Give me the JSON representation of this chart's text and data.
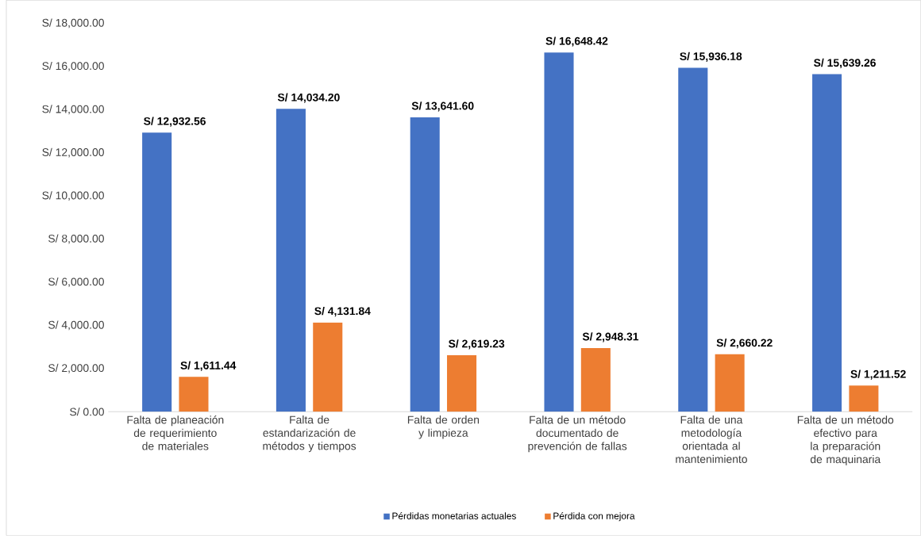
{
  "chart_data": {
    "type": "bar",
    "categories": [
      "Falta de planeación de requerimiento de materiales",
      "Falta de estandarización de métodos y tiempos",
      "Falta de orden y limpieza",
      "Falta de un método documentado de prevención de fallas",
      "Falta de una metodología orientada al mantenimiento",
      "Falta de un método efectivo para la preparación de maquinaria"
    ],
    "series": [
      {
        "name": "Pérdidas monetarias actuales",
        "color": "#4472c4",
        "values": [
          12932.56,
          14034.2,
          13641.6,
          16648.42,
          15936.18,
          15639.26
        ],
        "value_labels": [
          "S/ 12,932.56",
          "S/ 14,034.20",
          "S/ 13,641.60",
          "S/ 16,648.42",
          "S/ 15,936.18",
          "S/ 15,639.26"
        ]
      },
      {
        "name": "Pérdida con mejora",
        "color": "#ed7d31",
        "values": [
          1611.44,
          4131.84,
          2619.23,
          2948.31,
          2660.22,
          1211.52
        ],
        "value_labels": [
          "S/ 1,611.44",
          "S/ 4,131.84",
          "S/ 2,619.23",
          "S/ 2,948.31",
          "S/ 2,660.22",
          "S/ 1,211.52"
        ]
      }
    ],
    "ylim": [
      0,
      18000
    ],
    "yticks": [
      {
        "value": 0,
        "label": "S/ 0.00"
      },
      {
        "value": 2000,
        "label": "S/ 2,000.00"
      },
      {
        "value": 4000,
        "label": "S/ 4,000.00"
      },
      {
        "value": 6000,
        "label": "S/ 6,000.00"
      },
      {
        "value": 8000,
        "label": "S/ 8,000.00"
      },
      {
        "value": 10000,
        "label": "S/ 10,000.00"
      },
      {
        "value": 12000,
        "label": "S/ 12,000.00"
      },
      {
        "value": 14000,
        "label": "S/ 14,000.00"
      },
      {
        "value": 16000,
        "label": "S/ 16,000.00"
      },
      {
        "value": 18000,
        "label": "S/ 18,000.00"
      }
    ],
    "legend": "bottom"
  }
}
